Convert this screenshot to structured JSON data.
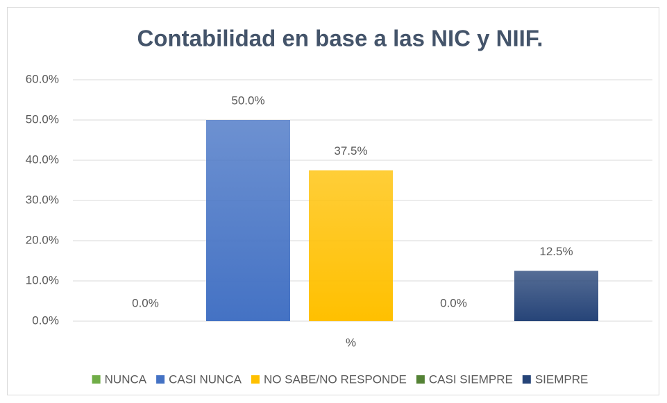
{
  "chart_data": {
    "type": "bar",
    "title": "Contabilidad en base a las NIC y NIIF.",
    "categories": [
      "%"
    ],
    "series": [
      {
        "name": "NUNCA",
        "color": "#70ad47",
        "values": [
          0
        ],
        "value_labels": [
          "0.0%"
        ]
      },
      {
        "name": "CASI NUNCA",
        "color": "#4472c4",
        "values": [
          50
        ],
        "value_labels": [
          "50.0%"
        ]
      },
      {
        "name": "NO SABE/NO RESPONDE",
        "color": "#ffc000",
        "values": [
          37.5
        ],
        "value_labels": [
          "37.5%"
        ]
      },
      {
        "name": "CASI SIEMPRE",
        "color": "#548235",
        "values": [
          0
        ],
        "value_labels": [
          "0.0%"
        ]
      },
      {
        "name": "SIEMPRE",
        "color": "#264478",
        "values": [
          12.5
        ],
        "value_labels": [
          "12.5%"
        ]
      }
    ],
    "ylim": [
      0,
      60
    ],
    "yticks": [
      {
        "value": 0,
        "label": "0.0%"
      },
      {
        "value": 10,
        "label": "10.0%"
      },
      {
        "value": 20,
        "label": "20.0%"
      },
      {
        "value": 30,
        "label": "30.0%"
      },
      {
        "value": 40,
        "label": "40.0%"
      },
      {
        "value": 50,
        "label": "50.0%"
      },
      {
        "value": 60,
        "label": "60.0%"
      }
    ],
    "grid": true,
    "legend": "bottom"
  }
}
